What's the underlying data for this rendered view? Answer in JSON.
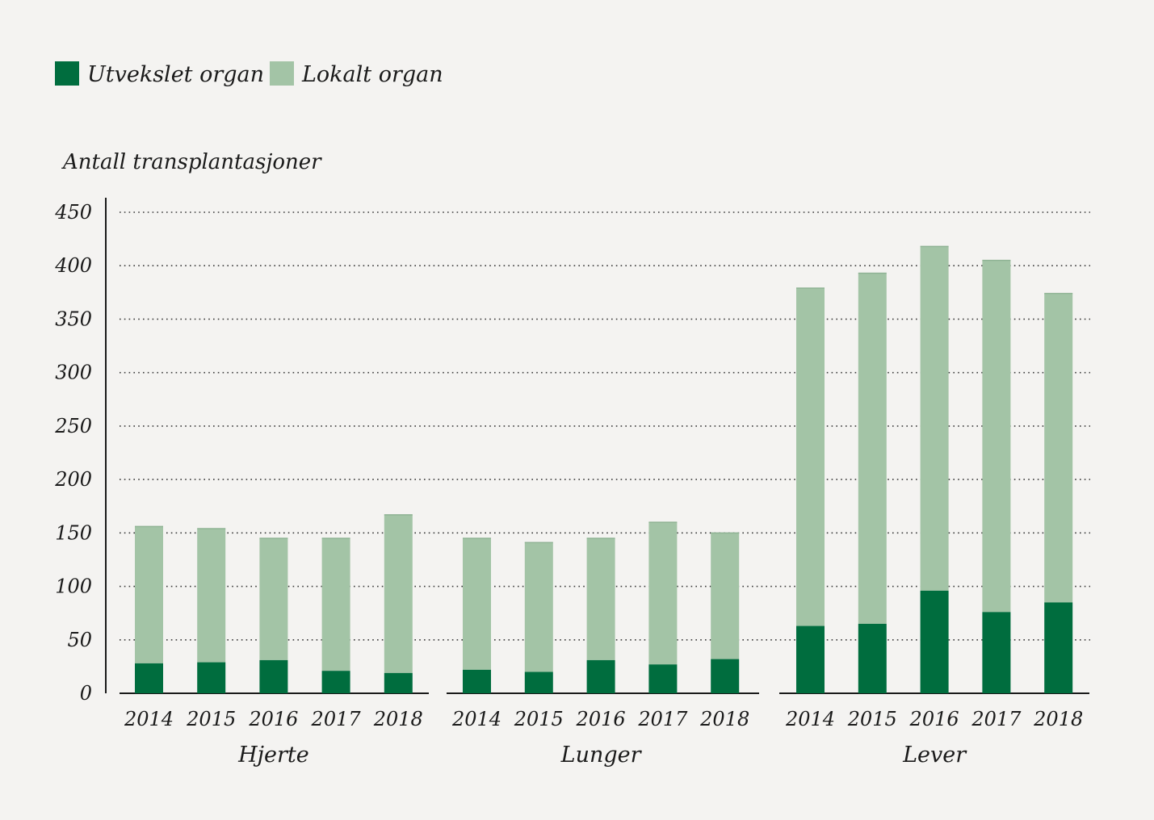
{
  "chart_data": {
    "type": "bar",
    "stacked": true,
    "ylabel": "Antall transplantasjoner",
    "ylim": [
      0,
      450
    ],
    "yticks": [
      0,
      50,
      100,
      150,
      200,
      250,
      300,
      350,
      400,
      450
    ],
    "grid": true,
    "legend_position": "top-left",
    "series": [
      {
        "name": "Utvekslet organ",
        "color": "#006d3e"
      },
      {
        "name": "Lokalt organ",
        "color": "#a3c4a6"
      }
    ],
    "groups": [
      {
        "name": "Hjerte",
        "categories": [
          "2014",
          "2015",
          "2016",
          "2017",
          "2018"
        ],
        "utvekslet": [
          28,
          29,
          31,
          21,
          19
        ],
        "lokalt": [
          128,
          125,
          114,
          124,
          148
        ]
      },
      {
        "name": "Lunger",
        "categories": [
          "2014",
          "2015",
          "2016",
          "2017",
          "2018"
        ],
        "utvekslet": [
          22,
          20,
          31,
          27,
          32
        ],
        "lokalt": [
          123,
          121,
          114,
          133,
          118
        ]
      },
      {
        "name": "Lever",
        "categories": [
          "2014",
          "2015",
          "2016",
          "2017",
          "2018"
        ],
        "utvekslet": [
          63,
          65,
          96,
          76,
          85
        ],
        "lokalt": [
          316,
          328,
          322,
          329,
          289
        ]
      }
    ]
  }
}
